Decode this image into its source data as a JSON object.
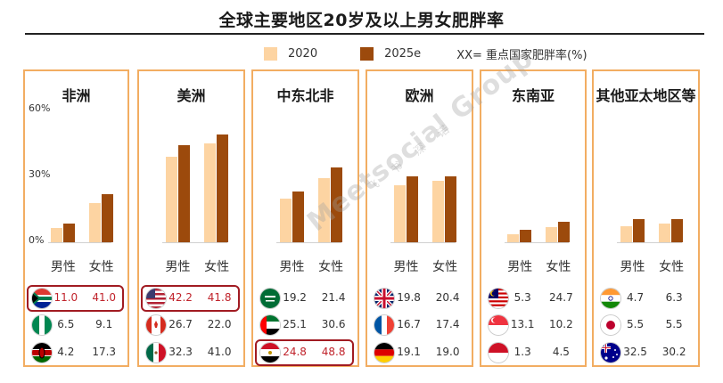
{
  "title": "全球主要地区20岁及以上男女肥胖率",
  "legend": {
    "items": [
      "2020",
      "2025e"
    ],
    "note": "XX= 重点国家肥胖率(%)"
  },
  "colors": {
    "y2020": "#fdd4a2",
    "y2025e": "#9c4a0c",
    "border": "#f2ad62",
    "highlight": "#a11b22",
    "highlight_text": "#c0232b"
  },
  "watermark": {
    "main": "Meetsocial Group",
    "sub": "飞 书 深 诺"
  },
  "chart_data": [
    {
      "type": "bar",
      "title": "非洲",
      "categories": [
        "男性",
        "女性"
      ],
      "ylim": [
        0,
        60
      ],
      "yticks": [
        "60%",
        "30%",
        "0%"
      ],
      "series": [
        {
          "name": "2020",
          "values": [
            6.5,
            18
          ]
        },
        {
          "name": "2025e",
          "values": [
            8.5,
            22
          ]
        }
      ],
      "table": [
        {
          "flag": "south-africa-flag",
          "male": "11.0",
          "female": "41.0",
          "highlight": true
        },
        {
          "flag": "nigeria-flag",
          "male": "6.5",
          "female": "9.1",
          "highlight": false
        },
        {
          "flag": "kenya-flag",
          "male": "4.2",
          "female": "17.3",
          "highlight": false
        }
      ]
    },
    {
      "type": "bar",
      "title": "美洲",
      "categories": [
        "男性",
        "女性"
      ],
      "ylim": [
        0,
        60
      ],
      "series": [
        {
          "name": "2020",
          "values": [
            39,
            45
          ]
        },
        {
          "name": "2025e",
          "values": [
            44,
            49
          ]
        }
      ],
      "table": [
        {
          "flag": "usa-flag",
          "male": "42.2",
          "female": "41.8",
          "highlight": true
        },
        {
          "flag": "canada-flag",
          "male": "26.7",
          "female": "22.0",
          "highlight": false
        },
        {
          "flag": "mexico-flag",
          "male": "32.3",
          "female": "41.0",
          "highlight": false
        }
      ]
    },
    {
      "type": "bar",
      "title": "中东北非",
      "categories": [
        "男性",
        "女性"
      ],
      "ylim": [
        0,
        60
      ],
      "series": [
        {
          "name": "2020",
          "values": [
            20,
            29
          ]
        },
        {
          "name": "2025e",
          "values": [
            23,
            34
          ]
        }
      ],
      "table": [
        {
          "flag": "saudi-flag",
          "male": "19.2",
          "female": "21.4",
          "highlight": false
        },
        {
          "flag": "uae-flag",
          "male": "25.1",
          "female": "30.6",
          "highlight": false
        },
        {
          "flag": "egypt-flag",
          "male": "24.8",
          "female": "48.8",
          "highlight": true
        }
      ]
    },
    {
      "type": "bar",
      "title": "欧洲",
      "categories": [
        "男性",
        "女性"
      ],
      "ylim": [
        0,
        60
      ],
      "series": [
        {
          "name": "2020",
          "values": [
            26,
            28
          ]
        },
        {
          "name": "2025e",
          "values": [
            30,
            30
          ]
        }
      ],
      "table": [
        {
          "flag": "uk-flag",
          "male": "19.8",
          "female": "20.4",
          "highlight": false
        },
        {
          "flag": "france-flag",
          "male": "16.7",
          "female": "17.4",
          "highlight": false
        },
        {
          "flag": "germany-flag",
          "male": "19.1",
          "female": "19.0",
          "highlight": false
        }
      ]
    },
    {
      "type": "bar",
      "title": "东南亚",
      "categories": [
        "男性",
        "女性"
      ],
      "ylim": [
        0,
        60
      ],
      "series": [
        {
          "name": "2020",
          "values": [
            3.5,
            7
          ]
        },
        {
          "name": "2025e",
          "values": [
            5.5,
            9.5
          ]
        }
      ],
      "table": [
        {
          "flag": "malaysia-flag",
          "male": "5.3",
          "female": "24.7",
          "highlight": false
        },
        {
          "flag": "singapore-flag",
          "male": "13.1",
          "female": "10.2",
          "highlight": false
        },
        {
          "flag": "indonesia-flag",
          "male": "1.3",
          "female": "4.5",
          "highlight": false
        }
      ]
    },
    {
      "type": "bar",
      "title": "其他亚太地区等",
      "categories": [
        "男性",
        "女性"
      ],
      "ylim": [
        0,
        60
      ],
      "series": [
        {
          "name": "2020",
          "values": [
            7.5,
            8.5
          ]
        },
        {
          "name": "2025e",
          "values": [
            10.5,
            10.5
          ]
        }
      ],
      "table": [
        {
          "flag": "india-flag",
          "male": "4.7",
          "female": "6.3",
          "highlight": false
        },
        {
          "flag": "japan-flag",
          "male": "5.5",
          "female": "5.5",
          "highlight": false
        },
        {
          "flag": "australia-flag",
          "male": "32.5",
          "female": "30.2",
          "highlight": false
        }
      ]
    }
  ]
}
